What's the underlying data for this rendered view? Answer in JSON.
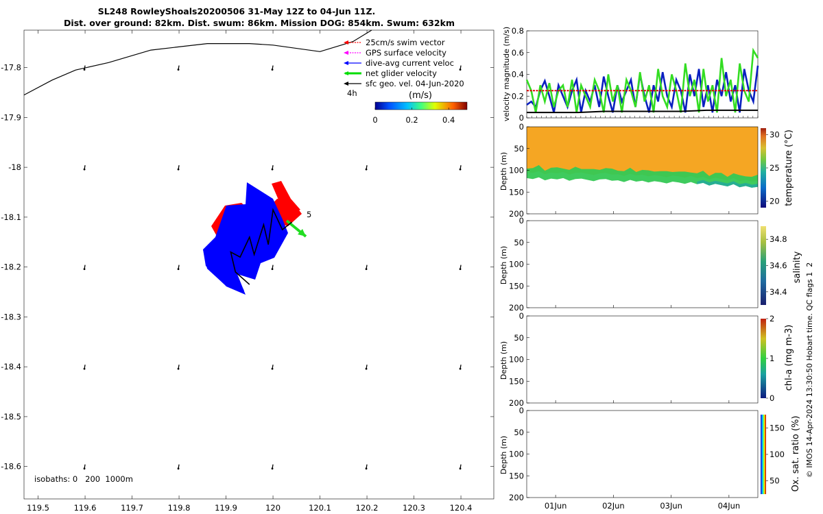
{
  "title": {
    "line1": "SL248 RowleyShoals20200506 31-May 12Z to 04-Jun 11Z.",
    "line2": "Dist. over ground: 82km. Dist. swum: 86km. Mission DOG: 854km. Swum: 632km"
  },
  "side_note": "© IMOS 14-Apr-2024 13:30:50 Hobart time. QC flags 1  2",
  "colors": {
    "swim_vector": "#ff0000",
    "gps_surface": "#ff00ff",
    "dive_avg": "#0000ff",
    "net_glider": "#00dd00",
    "sfc_geo": "#000000",
    "temperature_fill": "#f5a623",
    "vel_blue": "#0a1fc0",
    "vel_green": "#33dd22",
    "vel_red": "#dd0000",
    "vel_black": "#000000"
  },
  "chart_data": [
    {
      "type": "scatter",
      "name": "map",
      "xlim": [
        119.47,
        120.47
      ],
      "ylim": [
        -18.665,
        -17.725
      ],
      "xticks": [
        "119.5",
        "119.6",
        "119.7",
        "119.8",
        "119.9",
        "120",
        "120.1",
        "120.2",
        "120.3",
        "120.4"
      ],
      "xtick_values": [
        119.5,
        119.6,
        119.7,
        119.8,
        119.9,
        120.0,
        120.1,
        120.2,
        120.3,
        120.4
      ],
      "yticks": [
        "-17.8",
        "-17.9",
        "-18",
        "-18.1",
        "-18.2",
        "-18.3",
        "-18.4",
        "-18.5",
        "-18.6"
      ],
      "ytick_values": [
        -17.8,
        -17.9,
        -18.0,
        -18.1,
        -18.2,
        -18.3,
        -18.4,
        -18.5,
        -18.6
      ],
      "coastline": [
        [
          119.47,
          -17.855
        ],
        [
          119.53,
          -17.825
        ],
        [
          119.58,
          -17.805
        ],
        [
          119.65,
          -17.79
        ],
        [
          119.74,
          -17.765
        ],
        [
          119.86,
          -17.752
        ],
        [
          119.95,
          -17.752
        ],
        [
          120.0,
          -17.755
        ],
        [
          120.1,
          -17.768
        ],
        [
          120.17,
          -17.748
        ],
        [
          120.21,
          -17.725
        ]
      ],
      "glider_track": [
        [
          119.95,
          -18.235
        ],
        [
          119.92,
          -18.21
        ],
        [
          119.91,
          -18.17
        ],
        [
          119.93,
          -18.18
        ],
        [
          119.95,
          -18.14
        ],
        [
          119.96,
          -18.175
        ],
        [
          119.98,
          -18.115
        ],
        [
          119.99,
          -18.155
        ],
        [
          120.0,
          -18.085
        ],
        [
          120.02,
          -18.125
        ],
        [
          120.04,
          -18.11
        ]
      ],
      "current_arrows": [
        {
          "lon": 119.6,
          "lat": -17.8
        },
        {
          "lon": 119.8,
          "lat": -17.8
        },
        {
          "lon": 120.0,
          "lat": -17.8
        },
        {
          "lon": 120.4,
          "lat": -17.8
        },
        {
          "lon": 119.6,
          "lat": -18.0
        },
        {
          "lon": 119.8,
          "lat": -18.0
        },
        {
          "lon": 120.0,
          "lat": -18.0
        },
        {
          "lon": 120.2,
          "lat": -18.0
        },
        {
          "lon": 120.4,
          "lat": -18.0
        },
        {
          "lon": 119.6,
          "lat": -18.2
        },
        {
          "lon": 119.8,
          "lat": -18.2
        },
        {
          "lon": 120.0,
          "lat": -18.2
        },
        {
          "lon": 120.2,
          "lat": -18.2
        },
        {
          "lon": 120.4,
          "lat": -18.2
        },
        {
          "lon": 119.6,
          "lat": -18.4
        },
        {
          "lon": 119.8,
          "lat": -18.4
        },
        {
          "lon": 120.0,
          "lat": -18.4
        },
        {
          "lon": 120.2,
          "lat": -18.4
        },
        {
          "lon": 120.4,
          "lat": -18.4
        },
        {
          "lon": 119.6,
          "lat": -18.6
        },
        {
          "lon": 119.8,
          "lat": -18.6
        },
        {
          "lon": 120.0,
          "lat": -18.6
        },
        {
          "lon": 120.2,
          "lat": -18.6
        },
        {
          "lon": 120.4,
          "lat": -18.6
        }
      ],
      "annotations": {
        "five": "5",
        "four_h": "4h"
      },
      "isobaths_text": "isobaths: 0   200  1000m",
      "legend": {
        "entries": [
          {
            "label": "25cm/s swim vector",
            "color_key": "swim_vector",
            "style": "dotted"
          },
          {
            "label": "GPS surface velocity",
            "color_key": "gps_surface",
            "style": "dotted"
          },
          {
            "label": "dive-avg current veloc",
            "color_key": "dive_avg",
            "style": "solid"
          },
          {
            "label": "net glider velocity",
            "color_key": "net_glider",
            "style": "thick"
          },
          {
            "label": "sfc geo. vel. 04-Jun-2020",
            "color_key": "sfc_geo",
            "style": "solid"
          }
        ],
        "colorbar_title": "(m/s)",
        "colorbar_ticks": [
          "0",
          "0.2",
          "0.4"
        ],
        "colorbar_tick_values": [
          0,
          0.2,
          0.4
        ],
        "colorbar_range": [
          0,
          0.5
        ]
      }
    },
    {
      "type": "line",
      "name": "velocity",
      "ylabel": "velocity magnitude (m/s)",
      "ylim": [
        0,
        0.8
      ],
      "yticks": [
        "0",
        "0.2",
        "0.4",
        "0.6",
        "0.8"
      ],
      "ytick_values": [
        0,
        0.2,
        0.4,
        0.6,
        0.8
      ],
      "series": [
        {
          "color_key": "vel_blue",
          "values": [
            0.12,
            0.15,
            0.1,
            0.25,
            0.34,
            0.2,
            0.05,
            0.3,
            0.2,
            0.1,
            0.25,
            0.35,
            0.05,
            0.25,
            0.15,
            0.3,
            0.1,
            0.38,
            0.2,
            0.05,
            0.3,
            0.15,
            0.25,
            0.35,
            0.1,
            0.4,
            0.2,
            0.05,
            0.3,
            0.15,
            0.42,
            0.2,
            0.1,
            0.35,
            0.25,
            0.05,
            0.4,
            0.2,
            0.45,
            0.1,
            0.3,
            0.05,
            0.35,
            0.2,
            0.42,
            0.15,
            0.3,
            0.05,
            0.45,
            0.25,
            0.15,
            0.48
          ]
        },
        {
          "color_key": "vel_green",
          "values": [
            0.35,
            0.25,
            0.05,
            0.3,
            0.15,
            0.32,
            0.1,
            0.25,
            0.3,
            0.1,
            0.35,
            0.05,
            0.3,
            0.2,
            0.1,
            0.35,
            0.25,
            0.05,
            0.4,
            0.15,
            0.3,
            0.05,
            0.35,
            0.25,
            0.1,
            0.42,
            0.15,
            0.3,
            0.05,
            0.45,
            0.2,
            0.1,
            0.4,
            0.25,
            0.05,
            0.5,
            0.2,
            0.35,
            0.05,
            0.45,
            0.15,
            0.3,
            0.05,
            0.55,
            0.2,
            0.35,
            0.05,
            0.5,
            0.25,
            0.15,
            0.62,
            0.55
          ]
        },
        {
          "color_key": "vel_red",
          "values": [
            0.25,
            0.25,
            0.25,
            0.25,
            0.25,
            0.25,
            0.25,
            0.25,
            0.25,
            0.25
          ]
        },
        {
          "color_key": "vel_black",
          "values": [
            0.05,
            0.05,
            0.05,
            0.06,
            0.06,
            0.06,
            0.06,
            0.07,
            0.07,
            0.07
          ]
        }
      ]
    },
    {
      "type": "heatmap",
      "name": "temperature",
      "ylabel": "Depth (m)",
      "ylim": [
        200,
        0
      ],
      "yticks": [
        "0",
        "50",
        "100",
        "150",
        "200"
      ],
      "ytick_values": [
        0,
        50,
        100,
        150,
        200
      ],
      "colorbar_label": "temperature (°C)",
      "colorbar_ticks": [
        "20",
        "25",
        "30"
      ],
      "colorbar_tick_values": [
        20,
        25,
        30
      ],
      "colorbar_range": [
        19,
        31
      ],
      "bottom_depths": [
        118,
        120,
        116,
        123,
        119,
        121,
        118,
        124,
        120,
        119,
        122,
        125,
        121,
        120,
        124,
        123,
        127,
        122,
        126,
        124,
        128,
        125,
        127,
        130,
        126,
        128,
        131,
        127,
        132,
        129,
        135,
        131,
        134,
        137,
        132,
        139,
        136,
        140,
        138
      ]
    },
    {
      "type": "heatmap",
      "name": "salinity",
      "ylabel": "Depth (m)",
      "ylim": [
        200,
        0
      ],
      "yticks": [
        "0",
        "50",
        "100",
        "150",
        "200"
      ],
      "ytick_values": [
        0,
        50,
        100,
        150,
        200
      ],
      "colorbar_label": "salinity",
      "colorbar_ticks": [
        "34.4",
        "34.6",
        "34.8"
      ],
      "colorbar_tick_values": [
        34.4,
        34.6,
        34.8
      ],
      "colorbar_range": [
        34.3,
        34.9
      ]
    },
    {
      "type": "heatmap",
      "name": "chla",
      "ylabel": "Depth (m)",
      "ylim": [
        200,
        0
      ],
      "yticks": [
        "0",
        "50",
        "100",
        "150",
        "200"
      ],
      "ytick_values": [
        0,
        50,
        100,
        150,
        200
      ],
      "colorbar_label": "chl-a (mg m-3)",
      "colorbar_ticks": [
        "0",
        "1",
        "2"
      ],
      "colorbar_tick_values": [
        0,
        1,
        2
      ],
      "colorbar_range": [
        0,
        2
      ]
    },
    {
      "type": "heatmap",
      "name": "oxygen",
      "ylabel": "Depth (m)",
      "ylim": [
        200,
        0
      ],
      "yticks": [
        "0",
        "50",
        "100",
        "150",
        "200"
      ],
      "ytick_values": [
        0,
        50,
        100,
        150,
        200
      ],
      "xticks": [
        "01Jun",
        "02Jun",
        "03Jun",
        "04Jun"
      ],
      "xtick_values": [
        1,
        2,
        3,
        4
      ],
      "xlim": [
        0.5,
        4.5
      ],
      "colorbar_label": "Ox. sat. ratio (%)",
      "colorbar_ticks": [
        "50",
        "100",
        "150"
      ],
      "colorbar_tick_values": [
        50,
        100,
        150
      ],
      "colorbar_range": [
        25,
        175
      ]
    }
  ]
}
